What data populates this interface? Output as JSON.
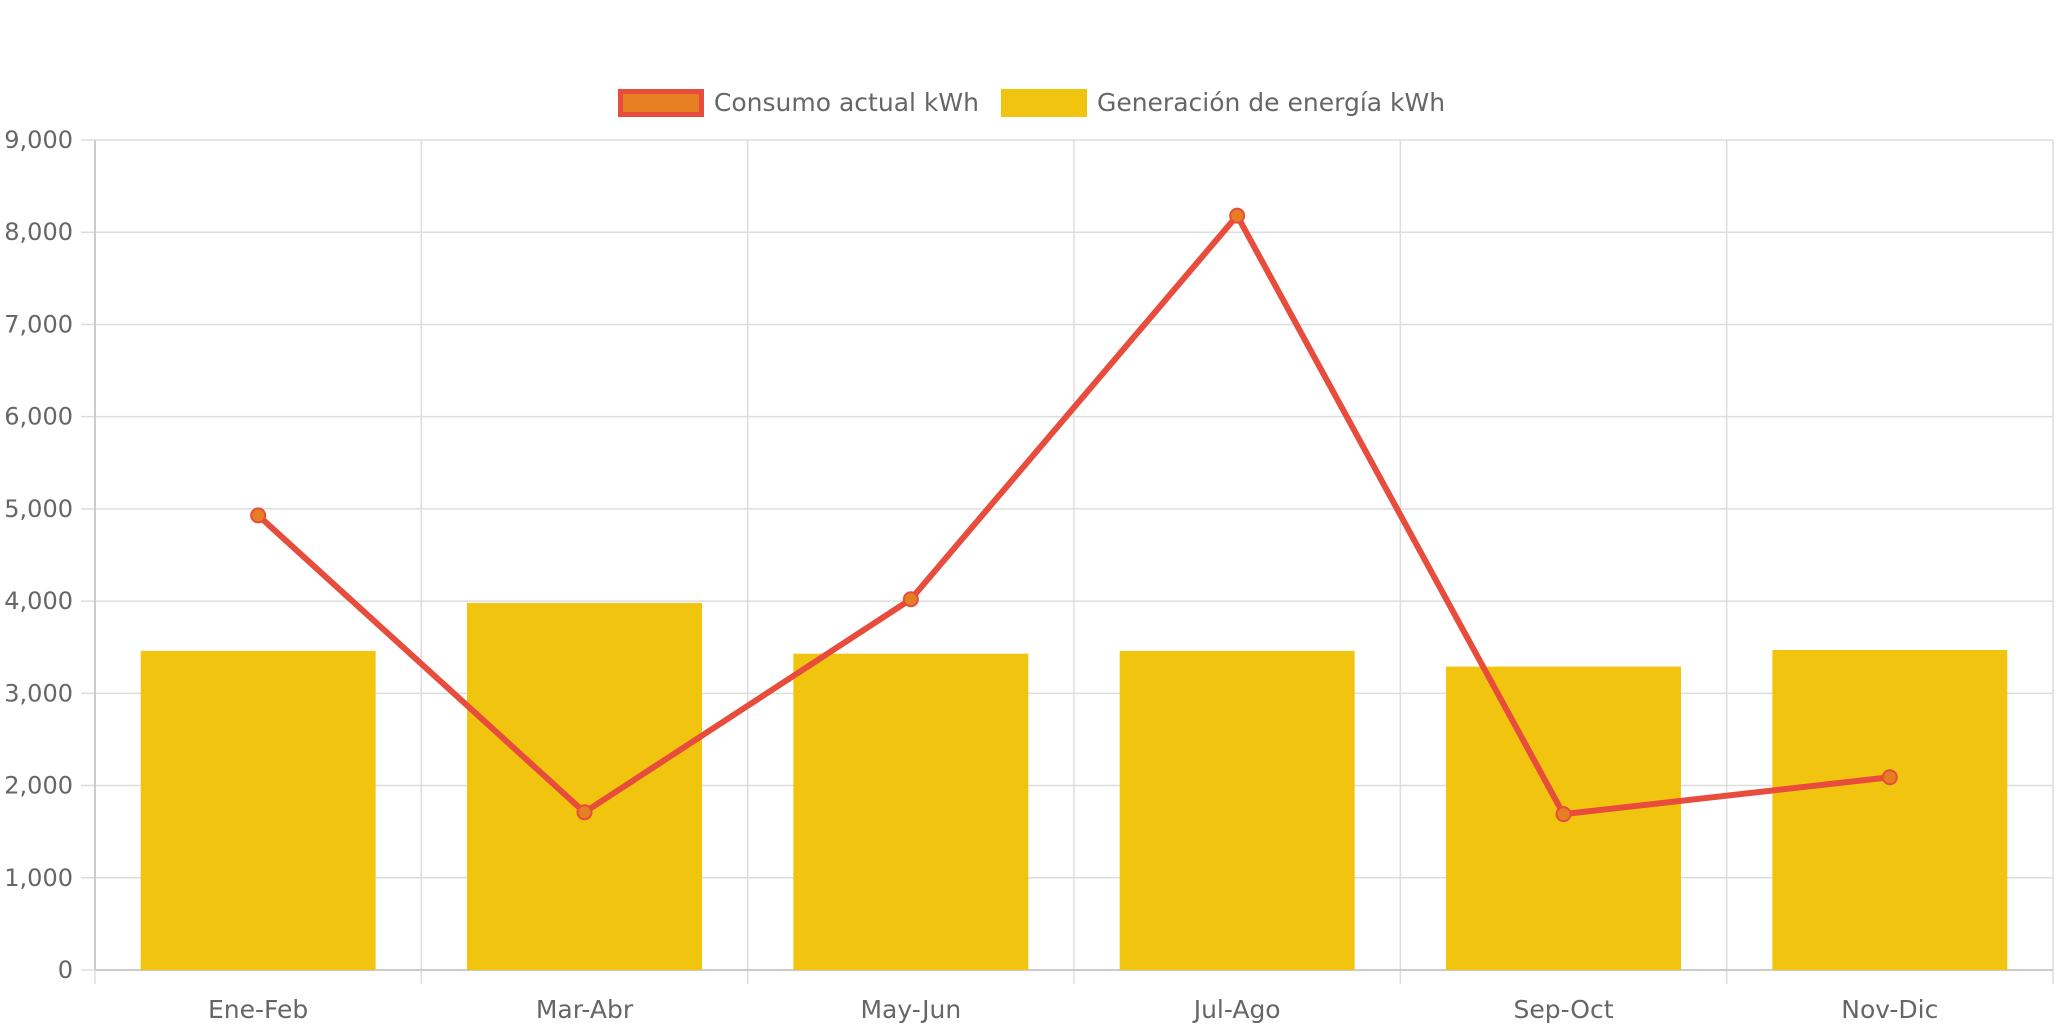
{
  "chart_data": {
    "type": "bar",
    "categories": [
      "Ene-Feb",
      "Mar-Abr",
      "May-Jun",
      "Jul-Ago",
      "Sep-Oct",
      "Nov-Dic"
    ],
    "series": [
      {
        "name": "Consumo actual kWh",
        "type": "line",
        "values": [
          4930,
          1710,
          4020,
          8180,
          1690,
          2090
        ],
        "color": "#e74c3c",
        "point_color": "#e67e22"
      },
      {
        "name": "Generación de energía kWh",
        "type": "bar",
        "values": [
          3460,
          3980,
          3430,
          3460,
          3290,
          3470
        ],
        "color": "#f1c40f"
      }
    ],
    "ylim": [
      0,
      9000
    ],
    "yticks": [
      "0",
      "1,000",
      "2,000",
      "3,000",
      "4,000",
      "5,000",
      "6,000",
      "7,000",
      "8,000",
      "9,000"
    ],
    "grid": true,
    "legend": "top-center",
    "title": "",
    "xlabel": "",
    "ylabel": ""
  }
}
